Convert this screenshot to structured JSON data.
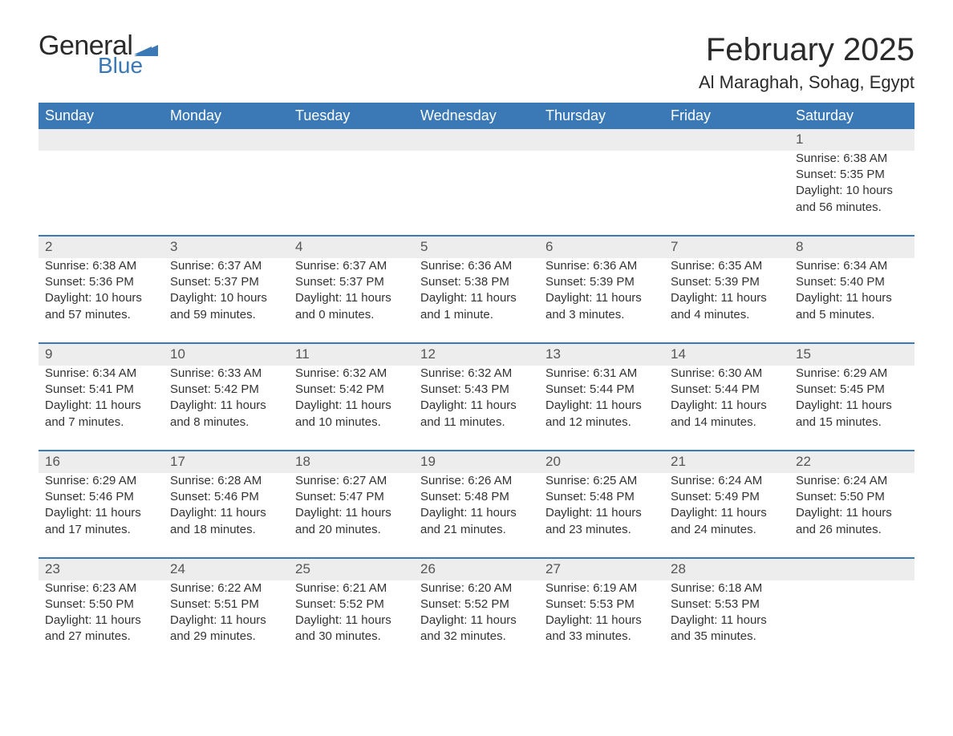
{
  "logo": {
    "text_general": "General",
    "text_blue": "Blue",
    "flag_color": "#3a78b6"
  },
  "title": "February 2025",
  "location": "Al Maraghah, Sohag, Egypt",
  "colors": {
    "header_bg": "#3a78b6",
    "header_text": "#ffffff",
    "daynum_bg": "#ededed",
    "body_text": "#333333",
    "page_bg": "#ffffff"
  },
  "typography": {
    "title_fontsize": 40,
    "location_fontsize": 22,
    "weekday_fontsize": 18,
    "cell_fontsize": 15
  },
  "weekdays": [
    "Sunday",
    "Monday",
    "Tuesday",
    "Wednesday",
    "Thursday",
    "Friday",
    "Saturday"
  ],
  "weeks": [
    [
      null,
      null,
      null,
      null,
      null,
      null,
      {
        "day": "1",
        "sunrise": "Sunrise: 6:38 AM",
        "sunset": "Sunset: 5:35 PM",
        "daylight": "Daylight: 10 hours and 56 minutes."
      }
    ],
    [
      {
        "day": "2",
        "sunrise": "Sunrise: 6:38 AM",
        "sunset": "Sunset: 5:36 PM",
        "daylight": "Daylight: 10 hours and 57 minutes."
      },
      {
        "day": "3",
        "sunrise": "Sunrise: 6:37 AM",
        "sunset": "Sunset: 5:37 PM",
        "daylight": "Daylight: 10 hours and 59 minutes."
      },
      {
        "day": "4",
        "sunrise": "Sunrise: 6:37 AM",
        "sunset": "Sunset: 5:37 PM",
        "daylight": "Daylight: 11 hours and 0 minutes."
      },
      {
        "day": "5",
        "sunrise": "Sunrise: 6:36 AM",
        "sunset": "Sunset: 5:38 PM",
        "daylight": "Daylight: 11 hours and 1 minute."
      },
      {
        "day": "6",
        "sunrise": "Sunrise: 6:36 AM",
        "sunset": "Sunset: 5:39 PM",
        "daylight": "Daylight: 11 hours and 3 minutes."
      },
      {
        "day": "7",
        "sunrise": "Sunrise: 6:35 AM",
        "sunset": "Sunset: 5:39 PM",
        "daylight": "Daylight: 11 hours and 4 minutes."
      },
      {
        "day": "8",
        "sunrise": "Sunrise: 6:34 AM",
        "sunset": "Sunset: 5:40 PM",
        "daylight": "Daylight: 11 hours and 5 minutes."
      }
    ],
    [
      {
        "day": "9",
        "sunrise": "Sunrise: 6:34 AM",
        "sunset": "Sunset: 5:41 PM",
        "daylight": "Daylight: 11 hours and 7 minutes."
      },
      {
        "day": "10",
        "sunrise": "Sunrise: 6:33 AM",
        "sunset": "Sunset: 5:42 PM",
        "daylight": "Daylight: 11 hours and 8 minutes."
      },
      {
        "day": "11",
        "sunrise": "Sunrise: 6:32 AM",
        "sunset": "Sunset: 5:42 PM",
        "daylight": "Daylight: 11 hours and 10 minutes."
      },
      {
        "day": "12",
        "sunrise": "Sunrise: 6:32 AM",
        "sunset": "Sunset: 5:43 PM",
        "daylight": "Daylight: 11 hours and 11 minutes."
      },
      {
        "day": "13",
        "sunrise": "Sunrise: 6:31 AM",
        "sunset": "Sunset: 5:44 PM",
        "daylight": "Daylight: 11 hours and 12 minutes."
      },
      {
        "day": "14",
        "sunrise": "Sunrise: 6:30 AM",
        "sunset": "Sunset: 5:44 PM",
        "daylight": "Daylight: 11 hours and 14 minutes."
      },
      {
        "day": "15",
        "sunrise": "Sunrise: 6:29 AM",
        "sunset": "Sunset: 5:45 PM",
        "daylight": "Daylight: 11 hours and 15 minutes."
      }
    ],
    [
      {
        "day": "16",
        "sunrise": "Sunrise: 6:29 AM",
        "sunset": "Sunset: 5:46 PM",
        "daylight": "Daylight: 11 hours and 17 minutes."
      },
      {
        "day": "17",
        "sunrise": "Sunrise: 6:28 AM",
        "sunset": "Sunset: 5:46 PM",
        "daylight": "Daylight: 11 hours and 18 minutes."
      },
      {
        "day": "18",
        "sunrise": "Sunrise: 6:27 AM",
        "sunset": "Sunset: 5:47 PM",
        "daylight": "Daylight: 11 hours and 20 minutes."
      },
      {
        "day": "19",
        "sunrise": "Sunrise: 6:26 AM",
        "sunset": "Sunset: 5:48 PM",
        "daylight": "Daylight: 11 hours and 21 minutes."
      },
      {
        "day": "20",
        "sunrise": "Sunrise: 6:25 AM",
        "sunset": "Sunset: 5:48 PM",
        "daylight": "Daylight: 11 hours and 23 minutes."
      },
      {
        "day": "21",
        "sunrise": "Sunrise: 6:24 AM",
        "sunset": "Sunset: 5:49 PM",
        "daylight": "Daylight: 11 hours and 24 minutes."
      },
      {
        "day": "22",
        "sunrise": "Sunrise: 6:24 AM",
        "sunset": "Sunset: 5:50 PM",
        "daylight": "Daylight: 11 hours and 26 minutes."
      }
    ],
    [
      {
        "day": "23",
        "sunrise": "Sunrise: 6:23 AM",
        "sunset": "Sunset: 5:50 PM",
        "daylight": "Daylight: 11 hours and 27 minutes."
      },
      {
        "day": "24",
        "sunrise": "Sunrise: 6:22 AM",
        "sunset": "Sunset: 5:51 PM",
        "daylight": "Daylight: 11 hours and 29 minutes."
      },
      {
        "day": "25",
        "sunrise": "Sunrise: 6:21 AM",
        "sunset": "Sunset: 5:52 PM",
        "daylight": "Daylight: 11 hours and 30 minutes."
      },
      {
        "day": "26",
        "sunrise": "Sunrise: 6:20 AM",
        "sunset": "Sunset: 5:52 PM",
        "daylight": "Daylight: 11 hours and 32 minutes."
      },
      {
        "day": "27",
        "sunrise": "Sunrise: 6:19 AM",
        "sunset": "Sunset: 5:53 PM",
        "daylight": "Daylight: 11 hours and 33 minutes."
      },
      {
        "day": "28",
        "sunrise": "Sunrise: 6:18 AM",
        "sunset": "Sunset: 5:53 PM",
        "daylight": "Daylight: 11 hours and 35 minutes."
      },
      null
    ]
  ]
}
